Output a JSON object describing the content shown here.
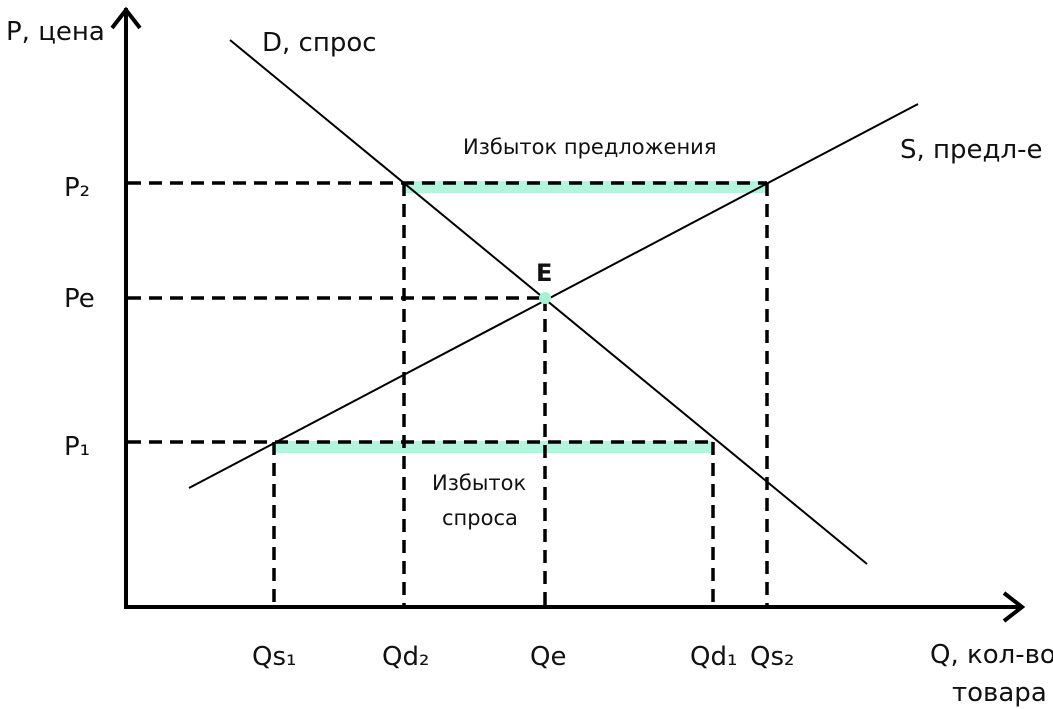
{
  "axes": {
    "y_label": "P, цена",
    "x_label_line1": "Q, кол-во",
    "x_label_line2": "товара"
  },
  "curves": {
    "demand_label": "D, спрос",
    "supply_label": "S, предл-е"
  },
  "price_ticks": {
    "p2": "P₂",
    "pe": "Pe",
    "p1": "P₁"
  },
  "quantity_ticks": {
    "qs1": "Qs₁",
    "qd2": "Qd₂",
    "qe": "Qe",
    "qd1": "Qd₁",
    "qs2": "Qs₂"
  },
  "equilibrium": {
    "label": "E"
  },
  "annotations": {
    "surplus_supply": "Избыток предложения",
    "surplus_demand_line1": "Избыток",
    "surplus_demand_line2": "спроса"
  },
  "colors": {
    "axis": "#000000",
    "curve": "#000000",
    "dashed": "#000000",
    "highlight": "#b3f5dc",
    "equilibrium_point": "#a8f0d4"
  }
}
